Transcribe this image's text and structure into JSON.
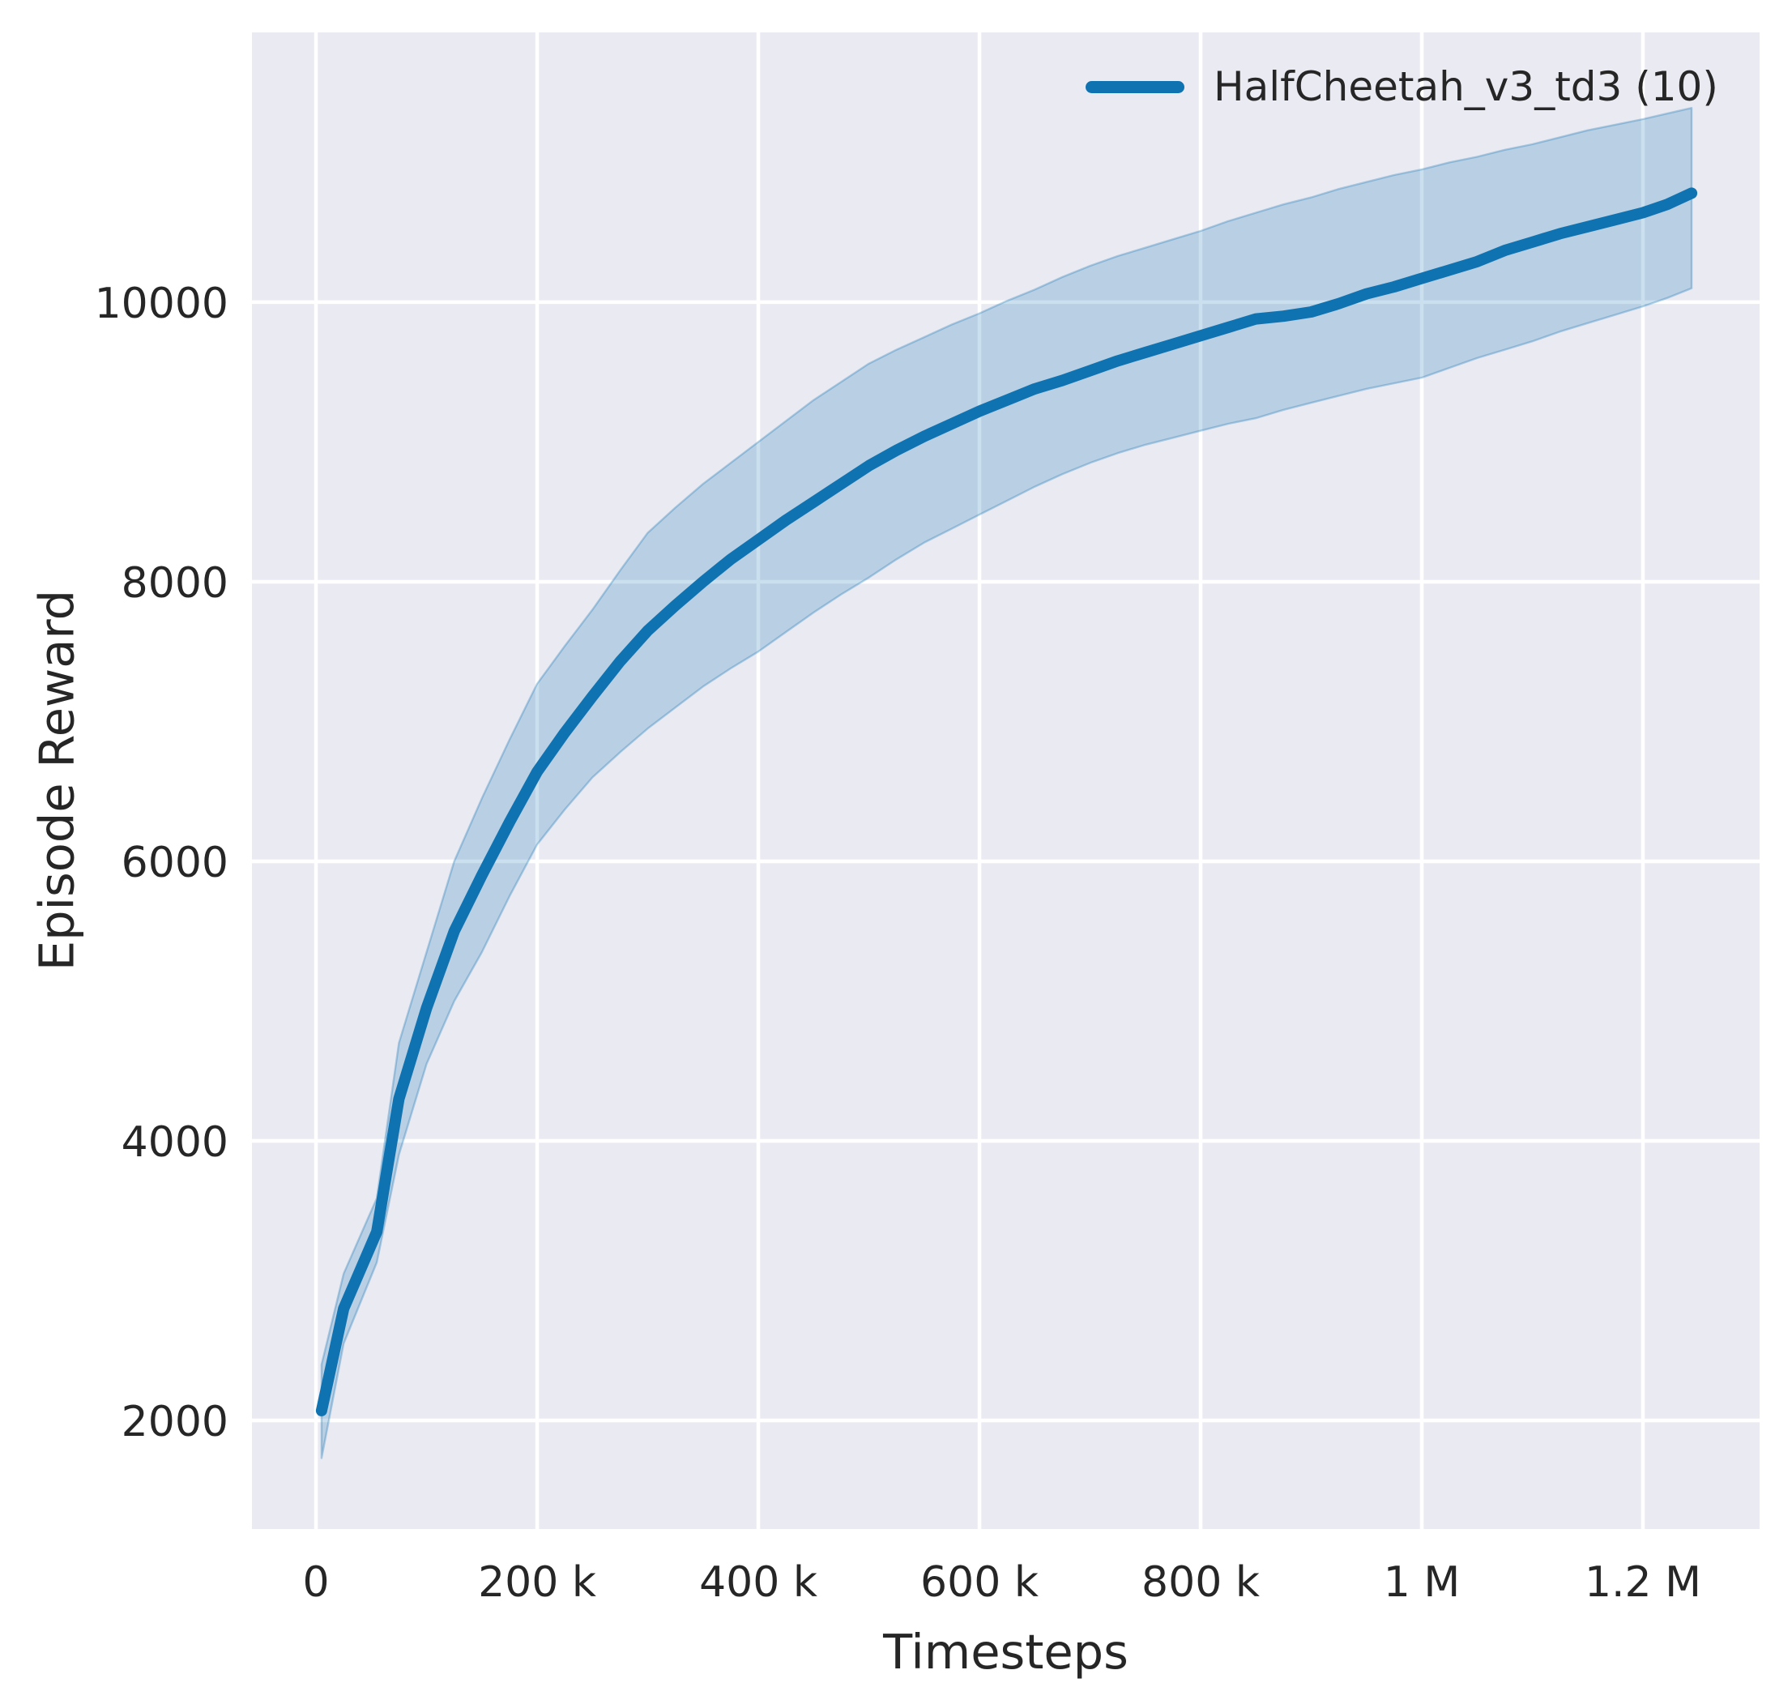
{
  "figure": {
    "background_color": "#ffffff"
  },
  "axes": {
    "xlabel": "Timesteps",
    "ylabel": "Episode Reward",
    "background_color": "#eaeaf2",
    "grid_color": "#ffffff",
    "text_color": "#262626",
    "xticks": [
      {
        "value": 0,
        "label": "0"
      },
      {
        "value": 200000,
        "label": "200 k"
      },
      {
        "value": 400000,
        "label": "400 k"
      },
      {
        "value": 600000,
        "label": "600 k"
      },
      {
        "value": 800000,
        "label": "800 k"
      },
      {
        "value": 1000000,
        "label": "1 M"
      },
      {
        "value": 1200000,
        "label": "1.2 M"
      }
    ],
    "yticks": [
      {
        "value": 2000,
        "label": "2000"
      },
      {
        "value": 4000,
        "label": "4000"
      },
      {
        "value": 6000,
        "label": "6000"
      },
      {
        "value": 8000,
        "label": "8000"
      },
      {
        "value": 10000,
        "label": "10000"
      }
    ]
  },
  "legend": {
    "position": "upper right",
    "entries": [
      {
        "label": "HalfCheetah_v3_td3 (10)",
        "color": "#0f73b2"
      }
    ]
  },
  "chart_data": {
    "type": "line",
    "title": "",
    "xlabel": "Timesteps",
    "ylabel": "Episode Reward",
    "grid": true,
    "legend_position": "upper right",
    "xlim": [
      -57900,
      1305500
    ],
    "ylim": [
      1223,
      11930
    ],
    "line_color": "#0f73b2",
    "band_fill_color": "rgba(15,115,178,0.22)",
    "band_edge_color": "rgba(15,115,178,0.30)",
    "series": [
      {
        "name": "HalfCheetah_v3_td3 (10)",
        "color": "#0f73b2",
        "x": [
          5000,
          25000,
          55000,
          75000,
          100000,
          125000,
          150000,
          175000,
          200000,
          225000,
          250000,
          275000,
          300000,
          325000,
          350000,
          375000,
          400000,
          425000,
          450000,
          475000,
          500000,
          525000,
          550000,
          575000,
          600000,
          625000,
          650000,
          675000,
          700000,
          725000,
          750000,
          775000,
          800000,
          825000,
          850000,
          875000,
          900000,
          925000,
          950000,
          975000,
          1000000,
          1025000,
          1050000,
          1075000,
          1100000,
          1125000,
          1150000,
          1175000,
          1200000,
          1222000,
          1244000
        ],
        "mean": [
          2070,
          2800,
          3350,
          4300,
          4950,
          5500,
          5900,
          6280,
          6640,
          6920,
          7180,
          7430,
          7650,
          7830,
          8000,
          8160,
          8300,
          8440,
          8570,
          8700,
          8830,
          8940,
          9040,
          9130,
          9220,
          9300,
          9380,
          9440,
          9510,
          9580,
          9640,
          9700,
          9760,
          9820,
          9880,
          9900,
          9930,
          9990,
          10060,
          10110,
          10170,
          10230,
          10290,
          10370,
          10430,
          10490,
          10540,
          10590,
          10640,
          10700,
          10780
        ],
        "lower": [
          1730,
          2550,
          3130,
          3900,
          4550,
          5000,
          5350,
          5750,
          6120,
          6370,
          6600,
          6780,
          6950,
          7100,
          7250,
          7380,
          7500,
          7640,
          7780,
          7910,
          8030,
          8160,
          8280,
          8380,
          8480,
          8580,
          8680,
          8770,
          8850,
          8920,
          8980,
          9030,
          9080,
          9130,
          9170,
          9230,
          9280,
          9330,
          9380,
          9420,
          9460,
          9530,
          9600,
          9660,
          9720,
          9790,
          9850,
          9910,
          9970,
          10030,
          10100
        ],
        "upper": [
          2400,
          3050,
          3590,
          4700,
          5350,
          6000,
          6450,
          6870,
          7270,
          7540,
          7800,
          8080,
          8350,
          8530,
          8700,
          8850,
          9000,
          9150,
          9300,
          9430,
          9560,
          9660,
          9750,
          9840,
          9920,
          10010,
          10090,
          10180,
          10260,
          10330,
          10390,
          10450,
          10510,
          10580,
          10640,
          10700,
          10750,
          10810,
          10860,
          10910,
          10950,
          11000,
          11040,
          11090,
          11130,
          11180,
          11230,
          11270,
          11310,
          11350,
          11390
        ]
      }
    ]
  }
}
